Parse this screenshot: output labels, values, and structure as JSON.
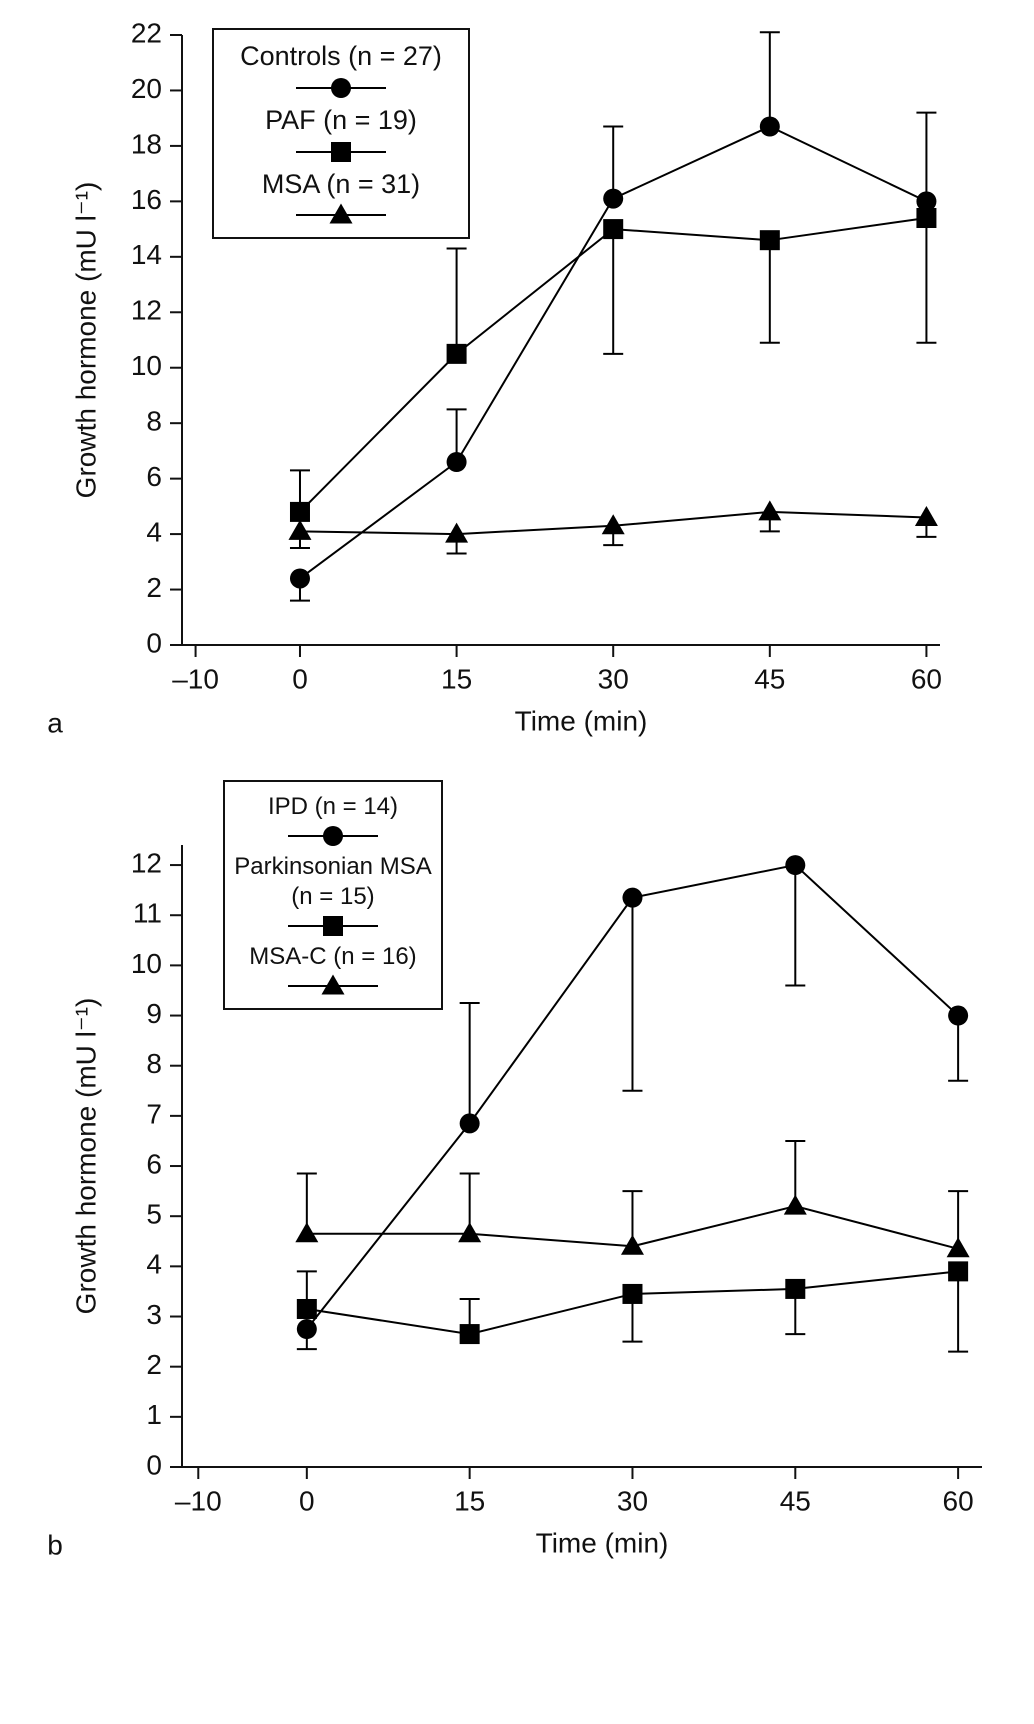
{
  "chart_data": [
    {
      "type": "line",
      "panel_label": "a",
      "x_label": "Time (min)",
      "y_label": "Growth hormone (mU l⁻¹)",
      "x": [
        0,
        15,
        30,
        45,
        60
      ],
      "xlim": [
        -11.3,
        61.3
      ],
      "xticks": [
        {
          "value": -10,
          "label": "–10"
        },
        0,
        15,
        30,
        45,
        60
      ],
      "ylim": [
        0,
        22
      ],
      "yticks": [
        0,
        2,
        4,
        6,
        8,
        10,
        12,
        14,
        16,
        18,
        20,
        22
      ],
      "series": [
        {
          "name": "Controls (n = 27)",
          "color": "#000000",
          "marker": "circle",
          "values": [
            2.4,
            6.6,
            16.1,
            18.7,
            16.0
          ],
          "err_high": [
            null,
            1.9,
            2.6,
            3.4,
            3.2
          ],
          "err_low": [
            0.8,
            null,
            null,
            null,
            null
          ]
        },
        {
          "name": "PAF (n = 19)",
          "color": "#000000",
          "marker": "square",
          "values": [
            4.8,
            10.5,
            15.0,
            14.6,
            15.4
          ],
          "err_high": [
            1.5,
            3.8,
            null,
            null,
            null
          ],
          "err_low": [
            null,
            null,
            4.5,
            3.7,
            4.5
          ]
        },
        {
          "name": "MSA (n = 31)",
          "color": "#000000",
          "marker": "triangle",
          "values": [
            4.1,
            4.0,
            4.3,
            4.8,
            4.6
          ],
          "err_high": [
            null,
            null,
            null,
            null,
            null
          ],
          "err_low": [
            0.6,
            0.7,
            0.7,
            0.7,
            0.7
          ]
        }
      ]
    },
    {
      "type": "line",
      "panel_label": "b",
      "x_label": "Time (min)",
      "y_label": "Growth hormone (mU l⁻¹)",
      "x": [
        0,
        15,
        30,
        45,
        60
      ],
      "xlim": [
        -11.5,
        62.2
      ],
      "xticks": [
        {
          "value": -10,
          "label": "–10"
        },
        0,
        15,
        30,
        45,
        60
      ],
      "ylim": [
        0,
        12.4
      ],
      "yticks": [
        0,
        1,
        2,
        3,
        4,
        5,
        6,
        7,
        8,
        9,
        10,
        11,
        12
      ],
      "series": [
        {
          "name": "IPD (n = 14)",
          "color": "#000000",
          "marker": "circle",
          "values": [
            2.75,
            6.85,
            11.35,
            12.0,
            9.0
          ],
          "err_high": [
            null,
            2.4,
            null,
            null,
            null
          ],
          "err_low": [
            0.4,
            null,
            3.85,
            2.4,
            1.3
          ]
        },
        {
          "name": "Parkinsonian MSA (n = 15)",
          "color": "#000000",
          "marker": "square",
          "values": [
            3.15,
            2.65,
            3.45,
            3.55,
            3.9
          ],
          "err_high": [
            0.75,
            0.7,
            null,
            null,
            null
          ],
          "err_low": [
            null,
            null,
            0.95,
            0.9,
            1.6
          ]
        },
        {
          "name": "MSA-C (n = 16)",
          "color": "#000000",
          "marker": "triangle",
          "values": [
            4.65,
            4.65,
            4.4,
            5.2,
            4.35
          ],
          "err_high": [
            1.2,
            1.2,
            1.1,
            1.3,
            1.15
          ],
          "err_low": [
            null,
            null,
            null,
            null,
            null
          ]
        }
      ]
    }
  ]
}
